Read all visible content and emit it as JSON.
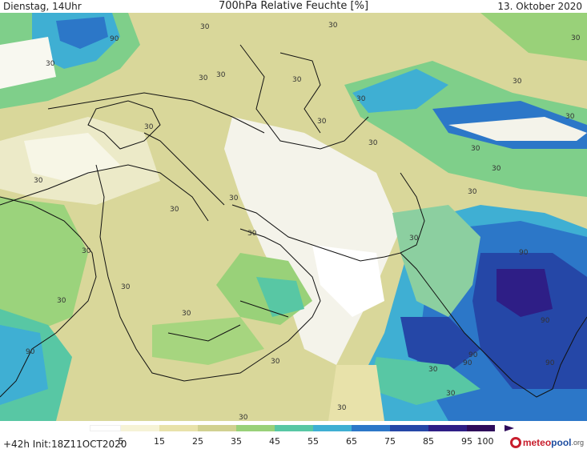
{
  "header": {
    "day_time": "Dienstag, 14Uhr",
    "title": "700hPa Relative Feuchte [%]",
    "date": "13. Oktober 2020"
  },
  "footer": {
    "run_info": "+42h  Init:18Z11OCT2020",
    "brand_part1": "meteo",
    "brand_part2": "pool",
    "brand_part3": ".org"
  },
  "colorbar": {
    "ticks": [
      "5",
      "15",
      "25",
      "35",
      "45",
      "55",
      "65",
      "75",
      "85",
      "95",
      "100"
    ],
    "colors": [
      "#ffffff",
      "#f6f3d6",
      "#e8e2aa",
      "#d1d191",
      "#99d179",
      "#58c7a4",
      "#3fafd3",
      "#2c77c8",
      "#2547a7",
      "#2e1e86",
      "#2e0b5a"
    ]
  },
  "map": {
    "labels": [
      "90",
      "90",
      "90",
      "90",
      "90",
      "90",
      "90",
      "30",
      "30",
      "30",
      "30",
      "30",
      "30",
      "30",
      "30",
      "30",
      "30",
      "30",
      "30",
      "30",
      "30",
      "30",
      "30",
      "30",
      "30",
      "30",
      "30",
      "30",
      "30",
      "30",
      "30",
      "30",
      "30",
      "30",
      "30",
      "30",
      "30"
    ]
  }
}
